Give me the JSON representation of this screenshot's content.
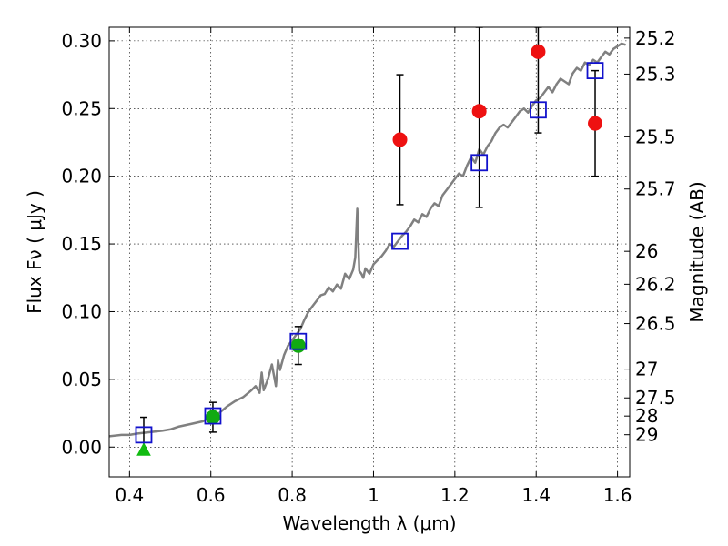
{
  "chart_data": {
    "type": "scatter",
    "title": "",
    "xlabel": "Wavelength  λ (μm)",
    "ylabel": "Flux  Fν  ( μJy )",
    "y2label": "Magnitude (AB)",
    "xlim": [
      0.35,
      1.63
    ],
    "ylim": [
      -0.022,
      0.31
    ],
    "xticks": [
      {
        "value": 0.4,
        "label": "0.4"
      },
      {
        "value": 0.6,
        "label": "0.6"
      },
      {
        "value": 0.8,
        "label": "0.8"
      },
      {
        "value": 1.0,
        "label": "1"
      },
      {
        "value": 1.2,
        "label": "1.2"
      },
      {
        "value": 1.4,
        "label": "1.4"
      },
      {
        "value": 1.6,
        "label": "1.6"
      }
    ],
    "yticks": [
      {
        "value": 0.0,
        "label": "0.00"
      },
      {
        "value": 0.05,
        "label": "0.05"
      },
      {
        "value": 0.1,
        "label": "0.10"
      },
      {
        "value": 0.15,
        "label": "0.15"
      },
      {
        "value": 0.2,
        "label": "0.20"
      },
      {
        "value": 0.25,
        "label": "0.25"
      },
      {
        "value": 0.3,
        "label": "0.30"
      }
    ],
    "y2ticks": [
      {
        "value": 25.2,
        "label": "25.2"
      },
      {
        "value": 25.3,
        "label": "25.3"
      },
      {
        "value": 25.5,
        "label": "25.5"
      },
      {
        "value": 25.7,
        "label": "25.7"
      },
      {
        "value": 26,
        "label": "26"
      },
      {
        "value": 26.2,
        "label": "26.2"
      },
      {
        "value": 26.5,
        "label": "26.5"
      },
      {
        "value": 27,
        "label": "27"
      },
      {
        "value": 27.5,
        "label": "27.5"
      },
      {
        "value": 28,
        "label": "28"
      },
      {
        "value": 29,
        "label": "29"
      }
    ],
    "grid": true,
    "colors": {
      "spectrum": "#808080",
      "detection": "#ee1111",
      "low_sn": "#11aa11",
      "upper_limit": "#11bb11",
      "model": "#1111cc",
      "errorbar": "#000000"
    },
    "series": [
      {
        "kind": "line",
        "x": [
          0.35,
          0.38,
          0.4,
          0.42,
          0.45,
          0.48,
          0.5,
          0.52,
          0.55,
          0.58,
          0.6,
          0.62,
          0.64,
          0.66,
          0.68,
          0.7,
          0.71,
          0.72,
          0.725,
          0.73,
          0.74,
          0.75,
          0.76,
          0.765,
          0.77,
          0.78,
          0.79,
          0.8,
          0.81,
          0.82,
          0.83,
          0.84,
          0.85,
          0.86,
          0.87,
          0.88,
          0.89,
          0.9,
          0.91,
          0.92,
          0.93,
          0.94,
          0.95,
          0.955,
          0.96,
          0.965,
          0.97,
          0.975,
          0.98,
          0.99,
          1.0,
          1.01,
          1.02,
          1.03,
          1.04,
          1.05,
          1.06,
          1.07,
          1.08,
          1.09,
          1.1,
          1.11,
          1.12,
          1.13,
          1.14,
          1.15,
          1.16,
          1.17,
          1.18,
          1.19,
          1.2,
          1.21,
          1.22,
          1.23,
          1.24,
          1.25,
          1.26,
          1.27,
          1.28,
          1.29,
          1.3,
          1.31,
          1.32,
          1.33,
          1.34,
          1.35,
          1.36,
          1.37,
          1.38,
          1.39,
          1.4,
          1.41,
          1.42,
          1.43,
          1.44,
          1.45,
          1.46,
          1.47,
          1.48,
          1.49,
          1.5,
          1.51,
          1.52,
          1.53,
          1.54,
          1.55,
          1.56,
          1.57,
          1.58,
          1.59,
          1.6,
          1.61,
          1.62
        ],
        "y": [
          0.008,
          0.009,
          0.009,
          0.01,
          0.011,
          0.012,
          0.013,
          0.015,
          0.017,
          0.019,
          0.022,
          0.025,
          0.03,
          0.034,
          0.037,
          0.042,
          0.045,
          0.04,
          0.055,
          0.042,
          0.05,
          0.061,
          0.045,
          0.064,
          0.057,
          0.068,
          0.075,
          0.079,
          0.083,
          0.087,
          0.094,
          0.1,
          0.104,
          0.108,
          0.112,
          0.113,
          0.118,
          0.115,
          0.12,
          0.117,
          0.128,
          0.124,
          0.131,
          0.14,
          0.176,
          0.13,
          0.128,
          0.125,
          0.132,
          0.128,
          0.135,
          0.138,
          0.141,
          0.145,
          0.15,
          0.148,
          0.152,
          0.156,
          0.159,
          0.163,
          0.168,
          0.166,
          0.172,
          0.17,
          0.176,
          0.18,
          0.178,
          0.186,
          0.19,
          0.194,
          0.198,
          0.202,
          0.2,
          0.208,
          0.214,
          0.21,
          0.22,
          0.216,
          0.222,
          0.226,
          0.232,
          0.236,
          0.238,
          0.236,
          0.24,
          0.244,
          0.248,
          0.25,
          0.247,
          0.252,
          0.256,
          0.258,
          0.262,
          0.266,
          0.262,
          0.268,
          0.272,
          0.27,
          0.268,
          0.276,
          0.28,
          0.278,
          0.284,
          0.282,
          0.286,
          0.284,
          0.288,
          0.292,
          0.29,
          0.294,
          0.296,
          0.298,
          0.297
        ]
      },
      {
        "kind": "errorbar",
        "marker": "circle",
        "color": "#ee1111",
        "points": [
          {
            "x": 1.065,
            "y": 0.227,
            "ylo": 0.179,
            "yhi": 0.275
          },
          {
            "x": 1.26,
            "y": 0.248,
            "ylo": 0.177,
            "yhi": 0.31
          },
          {
            "x": 1.405,
            "y": 0.292,
            "ylo": 0.232,
            "yhi": 0.31
          },
          {
            "x": 1.545,
            "y": 0.239,
            "ylo": 0.2,
            "yhi": 0.278
          }
        ]
      },
      {
        "kind": "errorbar",
        "marker": "circle",
        "color": "#11aa11",
        "points": [
          {
            "x": 0.605,
            "y": 0.022,
            "ylo": 0.011,
            "yhi": 0.033
          },
          {
            "x": 0.815,
            "y": 0.075,
            "ylo": 0.061,
            "yhi": 0.089
          }
        ]
      },
      {
        "kind": "errorbar",
        "marker": "triangle",
        "color": "#11bb11",
        "points": [
          {
            "x": 0.435,
            "y": -0.002,
            "ylo": -0.002,
            "yhi": 0.022
          }
        ]
      },
      {
        "kind": "points",
        "marker": "square",
        "color": "#1111cc",
        "points": [
          {
            "x": 0.435,
            "y": 0.009
          },
          {
            "x": 0.605,
            "y": 0.023
          },
          {
            "x": 0.815,
            "y": 0.078
          },
          {
            "x": 1.065,
            "y": 0.152
          },
          {
            "x": 1.26,
            "y": 0.21
          },
          {
            "x": 1.405,
            "y": 0.249
          },
          {
            "x": 1.545,
            "y": 0.278
          }
        ]
      }
    ]
  }
}
